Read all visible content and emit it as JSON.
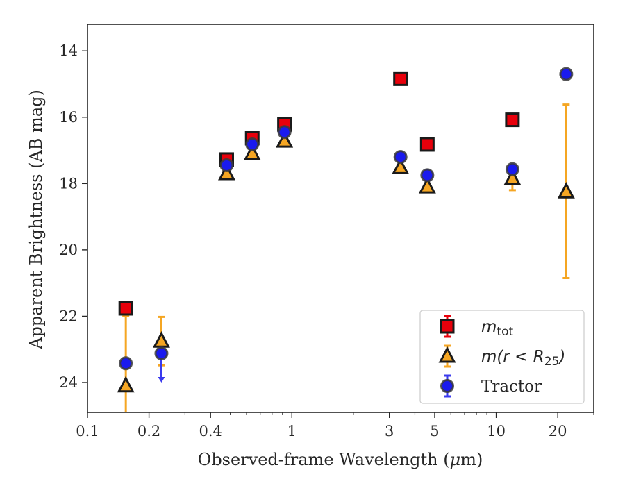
{
  "chart_data": {
    "type": "scatter",
    "xlabel_prefix": "Observed-frame Wavelength (",
    "xlabel_mu": "μ",
    "xlabel_suffix": "m)",
    "ylabel": "Apparent Brightness (AB mag)",
    "xscale": "log",
    "xlim": [
      0.1,
      30
    ],
    "ylim": [
      24.9,
      13.2
    ],
    "y_inverted": true,
    "grid": false,
    "legend_position": "lower-right",
    "x_ticks": [
      {
        "value": 0.1,
        "label": "0.1"
      },
      {
        "value": 0.2,
        "label": "0.2"
      },
      {
        "value": 0.4,
        "label": "0.4"
      },
      {
        "value": 1,
        "label": "1"
      },
      {
        "value": 3,
        "label": "3"
      },
      {
        "value": 5,
        "label": "5"
      },
      {
        "value": 10,
        "label": "10"
      },
      {
        "value": 20,
        "label": "20"
      }
    ],
    "y_ticks": [
      {
        "value": 14,
        "label": "14"
      },
      {
        "value": 16,
        "label": "16"
      },
      {
        "value": 18,
        "label": "18"
      },
      {
        "value": 20,
        "label": "20"
      },
      {
        "value": 22,
        "label": "22"
      },
      {
        "value": 24,
        "label": "24"
      }
    ],
    "series": [
      {
        "name": "m_tot",
        "legend_main": "m",
        "legend_sub": "tot",
        "marker": "square",
        "color": "#e8000b",
        "error_color": "#e8000b",
        "points": [
          {
            "x": 0.154,
            "y": 21.76
          },
          {
            "x": 0.48,
            "y": 17.28
          },
          {
            "x": 0.64,
            "y": 16.63
          },
          {
            "x": 0.92,
            "y": 16.22
          },
          {
            "x": 3.4,
            "y": 14.84
          },
          {
            "x": 4.6,
            "y": 16.82
          },
          {
            "x": 12.0,
            "y": 16.08
          }
        ]
      },
      {
        "name": "m(r<R25)",
        "legend_main": "m(r < R",
        "legend_sub": "25",
        "legend_end": ")",
        "marker": "triangle",
        "color": "#f5a623",
        "error_color": "#f5a623",
        "points": [
          {
            "x": 0.154,
            "y": 24.1,
            "ylo": 21.98,
            "yhi": 24.9
          },
          {
            "x": 0.23,
            "y": 22.75,
            "ylo": 22.02,
            "yhi": 23.48
          },
          {
            "x": 0.48,
            "y": 17.7
          },
          {
            "x": 0.64,
            "y": 17.1
          },
          {
            "x": 0.92,
            "y": 16.72
          },
          {
            "x": 3.4,
            "y": 17.52
          },
          {
            "x": 4.6,
            "y": 18.1
          },
          {
            "x": 12.0,
            "y": 17.85,
            "ylo": 17.55,
            "yhi": 18.2
          },
          {
            "x": 22.0,
            "y": 18.25,
            "ylo": 15.62,
            "yhi": 20.85
          }
        ]
      },
      {
        "name": "Tractor",
        "marker": "circle",
        "color": "#1a1aee",
        "error_color": "#3a3aee",
        "points": [
          {
            "x": 0.154,
            "y": 23.42
          },
          {
            "x": 0.23,
            "y": 23.12,
            "upper_limit": true,
            "arrow_to": 24.0
          },
          {
            "x": 0.48,
            "y": 17.45
          },
          {
            "x": 0.64,
            "y": 16.82
          },
          {
            "x": 0.92,
            "y": 16.45
          },
          {
            "x": 3.4,
            "y": 17.2
          },
          {
            "x": 4.6,
            "y": 17.75
          },
          {
            "x": 12.0,
            "y": 17.57
          },
          {
            "x": 22.0,
            "y": 14.7
          }
        ]
      }
    ]
  }
}
